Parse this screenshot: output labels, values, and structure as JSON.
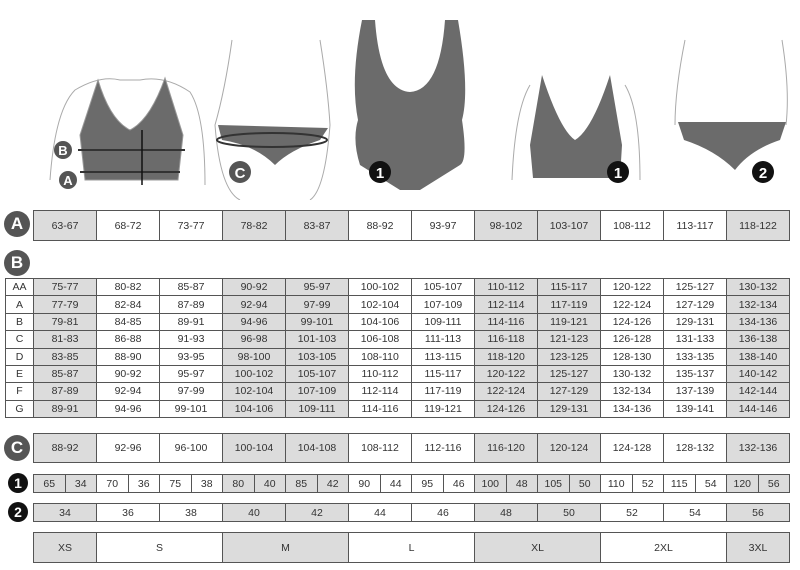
{
  "colors": {
    "figure": "#6b6b6b",
    "shaded": "#dcdcdc",
    "border": "#555555",
    "marker": "#555555",
    "marker_black": "#111111"
  },
  "markers": {
    "a": "A",
    "b": "B",
    "c": "C",
    "one": "1",
    "two": "2"
  },
  "illustrations": [
    {
      "name": "bra-measure-figure",
      "markers": [
        "B",
        "A"
      ]
    },
    {
      "name": "hip-brief-figure",
      "markers": [
        "C"
      ]
    },
    {
      "name": "swimsuit-figure",
      "markers": [
        "1"
      ]
    },
    {
      "name": "bra-figure",
      "markers": [
        "1"
      ]
    },
    {
      "name": "brief-figure",
      "markers": [
        "2"
      ]
    }
  ],
  "row_a": [
    "63-67",
    "68-72",
    "73-77",
    "78-82",
    "83-87",
    "88-92",
    "93-97",
    "98-102",
    "103-107",
    "108-112",
    "113-117",
    "118-122"
  ],
  "table_b": [
    {
      "cup": "AA",
      "values": [
        "75-77",
        "80-82",
        "85-87",
        "90-92",
        "95-97",
        "100-102",
        "105-107",
        "110-112",
        "115-117",
        "120-122",
        "125-127",
        "130-132"
      ]
    },
    {
      "cup": "A",
      "values": [
        "77-79",
        "82-84",
        "87-89",
        "92-94",
        "97-99",
        "102-104",
        "107-109",
        "112-114",
        "117-119",
        "122-124",
        "127-129",
        "132-134"
      ]
    },
    {
      "cup": "B",
      "values": [
        "79-81",
        "84-85",
        "89-91",
        "94-96",
        "99-101",
        "104-106",
        "109-111",
        "114-116",
        "119-121",
        "124-126",
        "129-131",
        "134-136"
      ]
    },
    {
      "cup": "C",
      "values": [
        "81-83",
        "86-88",
        "91-93",
        "96-98",
        "101-103",
        "106-108",
        "111-113",
        "116-118",
        "121-123",
        "126-128",
        "131-133",
        "136-138"
      ]
    },
    {
      "cup": "D",
      "values": [
        "83-85",
        "88-90",
        "93-95",
        "98-100",
        "103-105",
        "108-110",
        "113-115",
        "118-120",
        "123-125",
        "128-130",
        "133-135",
        "138-140"
      ]
    },
    {
      "cup": "E",
      "values": [
        "85-87",
        "90-92",
        "95-97",
        "100-102",
        "105-107",
        "110-112",
        "115-117",
        "120-122",
        "125-127",
        "130-132",
        "135-137",
        "140-142"
      ]
    },
    {
      "cup": "F",
      "values": [
        "87-89",
        "92-94",
        "97-99",
        "102-104",
        "107-109",
        "112-114",
        "117-119",
        "122-124",
        "127-129",
        "132-134",
        "137-139",
        "142-144"
      ]
    },
    {
      "cup": "G",
      "values": [
        "89-91",
        "94-96",
        "99-101",
        "104-106",
        "109-111",
        "114-116",
        "119-121",
        "124-126",
        "129-131",
        "134-136",
        "139-141",
        "144-146"
      ]
    }
  ],
  "row_c": [
    "88-92",
    "92-96",
    "96-100",
    "100-104",
    "104-108",
    "108-112",
    "112-116",
    "116-120",
    "120-124",
    "124-128",
    "128-132",
    "132-136"
  ],
  "row_1": [
    [
      "65",
      "34"
    ],
    [
      "70",
      "36"
    ],
    [
      "75",
      "38"
    ],
    [
      "80",
      "40"
    ],
    [
      "85",
      "42"
    ],
    [
      "90",
      "44"
    ],
    [
      "95",
      "46"
    ],
    [
      "100",
      "48"
    ],
    [
      "105",
      "50"
    ],
    [
      "110",
      "52"
    ],
    [
      "115",
      "54"
    ],
    [
      "120",
      "56"
    ]
  ],
  "row_2": [
    "34",
    "36",
    "38",
    "40",
    "42",
    "44",
    "46",
    "48",
    "50",
    "52",
    "54",
    "56"
  ],
  "sizes": [
    {
      "label": "XS",
      "span": 1
    },
    {
      "label": "S",
      "span": 2
    },
    {
      "label": "M",
      "span": 2
    },
    {
      "label": "L",
      "span": 2
    },
    {
      "label": "XL",
      "span": 2
    },
    {
      "label": "2XL",
      "span": 2
    },
    {
      "label": "3XL",
      "span": 1
    }
  ]
}
